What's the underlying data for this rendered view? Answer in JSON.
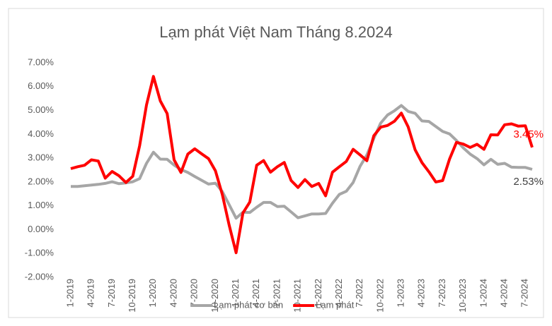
{
  "chart_data": {
    "type": "line",
    "title": "Lạm phát Việt Nam Tháng 8.2024",
    "categories": [
      "1-2019",
      null,
      null,
      "4-2019",
      null,
      null,
      "7-2019",
      null,
      null,
      "10-2019",
      null,
      null,
      "1-2020",
      null,
      null,
      "4-2020",
      null,
      null,
      "7-2020",
      null,
      null,
      "10-2020",
      null,
      null,
      "1-2021",
      null,
      null,
      "4-2021",
      null,
      null,
      "7-2021",
      null,
      null,
      "10-2021",
      null,
      null,
      "1-2022",
      null,
      null,
      "4-2022",
      null,
      null,
      "7-2022",
      null,
      null,
      "10-2022",
      null,
      null,
      "1-2023",
      null,
      null,
      "4-2023",
      null,
      null,
      "7-2023",
      null,
      null,
      "10-2023",
      null,
      null,
      "1-2024",
      null,
      null,
      "4-2024",
      null,
      null,
      "7-2024",
      null
    ],
    "series": [
      {
        "name": "Lạm phát cơ bản",
        "color": "#a6a6a6",
        "values": [
          1.81,
          1.81,
          1.84,
          1.87,
          1.9,
          1.94,
          2.01,
          1.93,
          1.96,
          2.01,
          2.14,
          2.78,
          3.25,
          2.96,
          2.95,
          2.71,
          2.52,
          2.4,
          2.23,
          2.07,
          1.91,
          1.95,
          1.6,
          1.05,
          0.48,
          0.73,
          0.72,
          0.94,
          1.14,
          1.14,
          0.97,
          0.98,
          0.74,
          0.5,
          0.58,
          0.66,
          0.66,
          0.68,
          1.11,
          1.48,
          1.61,
          1.98,
          2.65,
          3.13,
          3.83,
          4.47,
          4.81,
          4.99,
          5.21,
          4.96,
          4.88,
          4.56,
          4.54,
          4.33,
          4.12,
          4.02,
          3.74,
          3.43,
          3.17,
          2.98,
          2.72,
          2.95,
          2.74,
          2.78,
          2.62,
          2.61,
          2.61,
          2.53
        ],
        "value_labels": [
          null,
          null,
          null,
          null,
          null,
          null,
          null,
          null,
          null,
          null,
          null,
          null,
          null,
          null,
          null,
          null,
          null,
          null,
          null,
          null,
          null,
          null,
          null,
          null,
          null,
          null,
          null,
          null,
          null,
          null,
          null,
          null,
          null,
          null,
          null,
          null,
          null,
          null,
          null,
          null,
          null,
          null,
          null,
          null,
          null,
          null,
          null,
          null,
          null,
          null,
          null,
          null,
          null,
          null,
          null,
          null,
          null,
          null,
          null,
          null,
          null,
          null,
          null,
          null,
          null,
          null,
          null,
          "2.53%"
        ]
      },
      {
        "name": "Lạm phát",
        "color": "#ff0000",
        "values": [
          2.56,
          2.64,
          2.7,
          2.93,
          2.88,
          2.16,
          2.44,
          2.26,
          1.98,
          2.24,
          3.52,
          5.23,
          6.43,
          5.4,
          4.87,
          2.93,
          2.4,
          3.17,
          3.39,
          3.18,
          2.98,
          2.47,
          1.48,
          0.19,
          -0.97,
          0.7,
          1.16,
          2.7,
          2.9,
          2.41,
          2.64,
          2.82,
          2.06,
          1.77,
          2.1,
          1.81,
          1.94,
          1.42,
          2.41,
          2.64,
          2.86,
          3.37,
          3.14,
          2.89,
          3.94,
          4.3,
          4.37,
          4.55,
          4.89,
          4.31,
          3.35,
          2.81,
          2.43,
          2.0,
          2.06,
          2.96,
          3.66,
          3.59,
          3.45,
          3.58,
          3.37,
          3.98,
          3.97,
          4.4,
          4.44,
          4.34,
          4.36,
          3.45
        ],
        "value_labels": [
          null,
          null,
          null,
          null,
          null,
          null,
          null,
          null,
          null,
          null,
          null,
          null,
          null,
          null,
          null,
          null,
          null,
          null,
          null,
          null,
          null,
          null,
          null,
          null,
          null,
          null,
          null,
          null,
          null,
          null,
          null,
          null,
          null,
          null,
          null,
          null,
          null,
          null,
          null,
          null,
          null,
          null,
          null,
          null,
          null,
          null,
          null,
          null,
          null,
          null,
          null,
          null,
          null,
          null,
          null,
          null,
          null,
          null,
          null,
          null,
          null,
          null,
          null,
          null,
          null,
          null,
          null,
          "3.45%"
        ]
      }
    ],
    "ylim": [
      -2,
      7
    ],
    "yticks": [
      {
        "value": -2,
        "label": "-2.00%"
      },
      {
        "value": -1,
        "label": "-1.00%"
      },
      {
        "value": 0,
        "label": "0.00%"
      },
      {
        "value": 1,
        "label": "1.00%"
      },
      {
        "value": 2,
        "label": "2.00%"
      },
      {
        "value": 3,
        "label": "3.00%"
      },
      {
        "value": 4,
        "label": "4.00%"
      },
      {
        "value": 5,
        "label": "5.00%"
      },
      {
        "value": 6,
        "label": "6.00%"
      },
      {
        "value": 7,
        "label": "7.00%"
      }
    ],
    "grid": false,
    "legend": "bottom"
  }
}
